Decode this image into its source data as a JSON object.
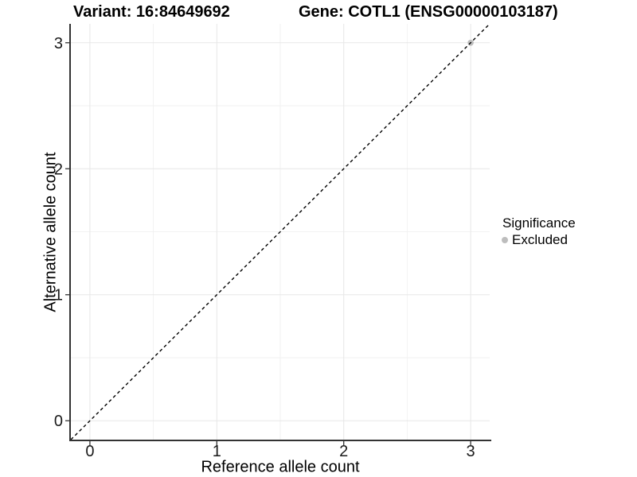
{
  "chart_data": {
    "type": "scatter",
    "titles": [
      "Variant: 16:84649692",
      "Gene: COTL1 (ENSG00000103187)"
    ],
    "xlabel": "Reference allele count",
    "ylabel": "Alternative allele count",
    "xlim": [
      -0.15,
      3.15
    ],
    "ylim": [
      -0.15,
      3.15
    ],
    "x_ticks": [
      0,
      1,
      2,
      3
    ],
    "y_ticks": [
      0,
      1,
      2,
      3
    ],
    "x_minor_ticks": [
      0.5,
      1.5,
      2.5
    ],
    "y_minor_ticks": [
      0.5,
      1.5,
      2.5
    ],
    "grid": "major+minor",
    "series": [
      {
        "name": "Excluded",
        "color": "#bdbdbd",
        "points": [
          {
            "x": 3,
            "y": 3
          }
        ]
      }
    ],
    "identity_line": {
      "slope": 1,
      "intercept": 0,
      "style": "dashed",
      "color": "#000000"
    },
    "legend": {
      "title": "Significance",
      "position": "right",
      "items": [
        {
          "label": "Excluded",
          "color": "#bdbdbd"
        }
      ]
    }
  },
  "colors": {
    "background": "#ffffff",
    "grid_major": "#e7e7e7",
    "grid_minor": "#f2f2f2",
    "axis_line": "#333333",
    "tick_text": "#1a1a1a",
    "point": "#bdbdbd"
  }
}
